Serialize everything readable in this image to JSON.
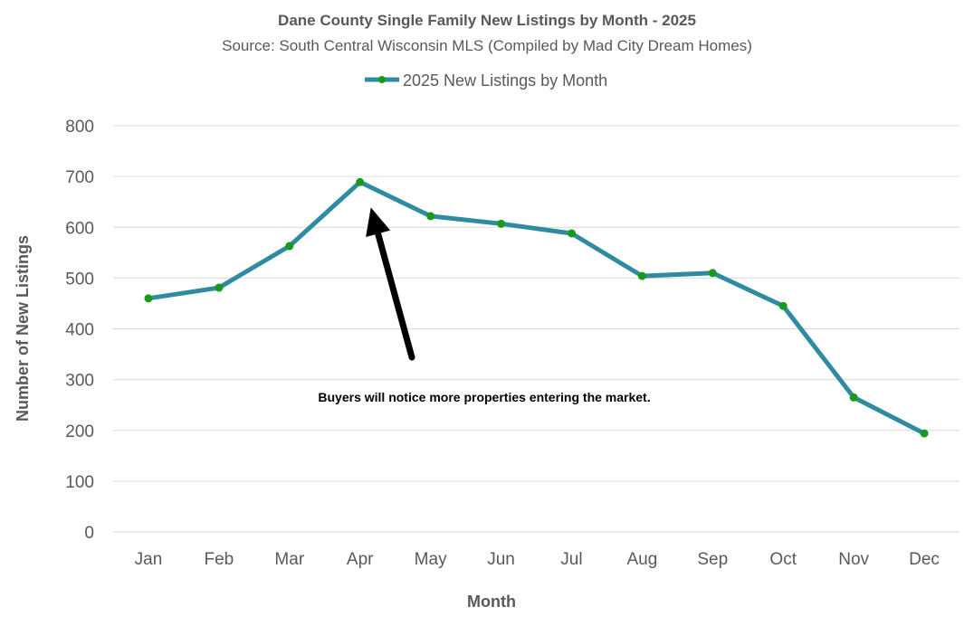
{
  "chart_data": {
    "type": "line",
    "title": "Dane County Single Family New Listings by Month - 2025",
    "subtitle": "Source: South Central Wisconsin MLS (Compiled by Mad City Dream Homes)",
    "xlabel": "Month",
    "ylabel": "Number of New Listings",
    "ylim": [
      0,
      800
    ],
    "yticks": [
      0,
      100,
      200,
      300,
      400,
      500,
      600,
      700,
      800
    ],
    "grid": true,
    "legend_placement": "top",
    "categories": [
      "Jan",
      "Feb",
      "Mar",
      "Apr",
      "May",
      "Jun",
      "Jul",
      "Aug",
      "Sep",
      "Oct",
      "Nov",
      "Dec"
    ],
    "series": [
      {
        "name": "2025 New Listings by Month",
        "values": [
          460,
          481,
          563,
          689,
          622,
          607,
          588,
          504,
          510,
          445,
          265,
          194
        ],
        "color": "#2E8BA0",
        "marker_color": "#1A9A1A"
      }
    ],
    "annotation": {
      "text": "Buyers will notice more properties entering the market.",
      "arrow_to": {
        "category": "Apr",
        "value": 630
      }
    }
  }
}
